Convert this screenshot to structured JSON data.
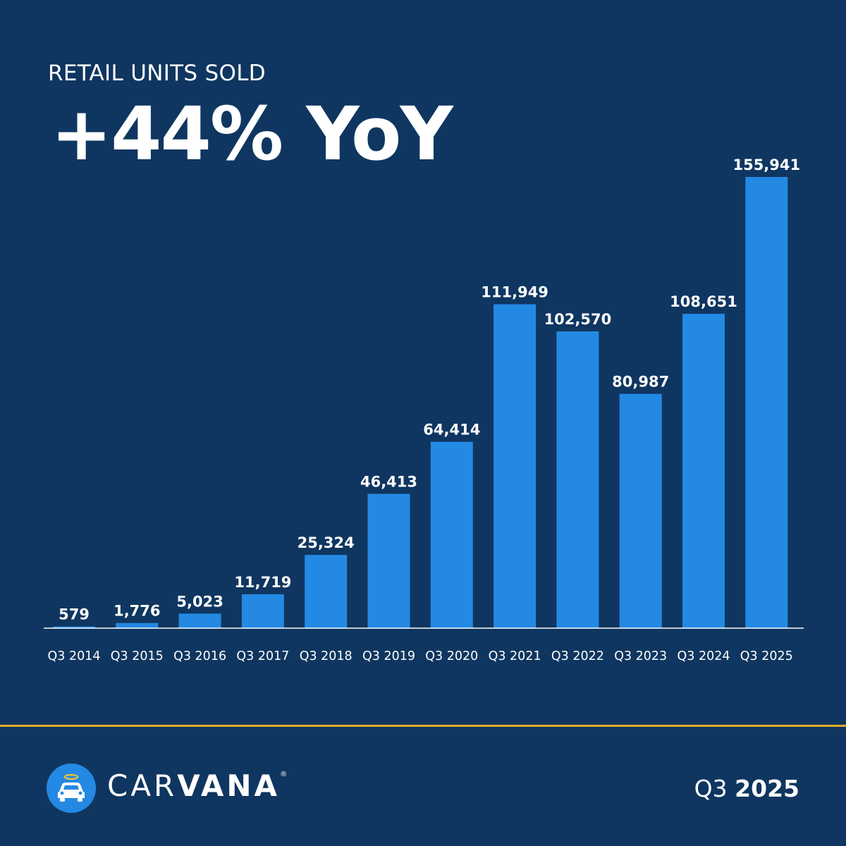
{
  "header": {
    "subtitle": "RETAIL UNITS SOLD",
    "headline": "+44% YoY"
  },
  "chart_data": {
    "type": "bar",
    "title": "RETAIL UNITS SOLD",
    "xlabel": "",
    "ylabel": "",
    "ylim": [
      0,
      155941
    ],
    "grid": false,
    "categories": [
      "Q3 2014",
      "Q3 2015",
      "Q3 2016",
      "Q3 2017",
      "Q3 2018",
      "Q3 2019",
      "Q3 2020",
      "Q3 2021",
      "Q3 2022",
      "Q3 2023",
      "Q3 2024",
      "Q3 2025"
    ],
    "values": [
      579,
      1776,
      5023,
      11719,
      25324,
      46413,
      64414,
      111949,
      102570,
      80987,
      108651,
      155941
    ],
    "value_labels": [
      "579",
      "1,776",
      "5,023",
      "11,719",
      "25,324",
      "46,413",
      "64,414",
      "111,949",
      "102,570",
      "80,987",
      "108,651",
      "155,941"
    ]
  },
  "footer": {
    "brand_light": "CAR",
    "brand_bold": "VANA",
    "brand_mark": "®",
    "period_quarter": "Q3",
    "period_year": "2025"
  },
  "colors": {
    "background": "#0f3660",
    "bar": "#2489e3",
    "divider": "#e0a92a",
    "text": "#ffffff"
  },
  "icons": {
    "logo": "car-with-halo-icon"
  }
}
